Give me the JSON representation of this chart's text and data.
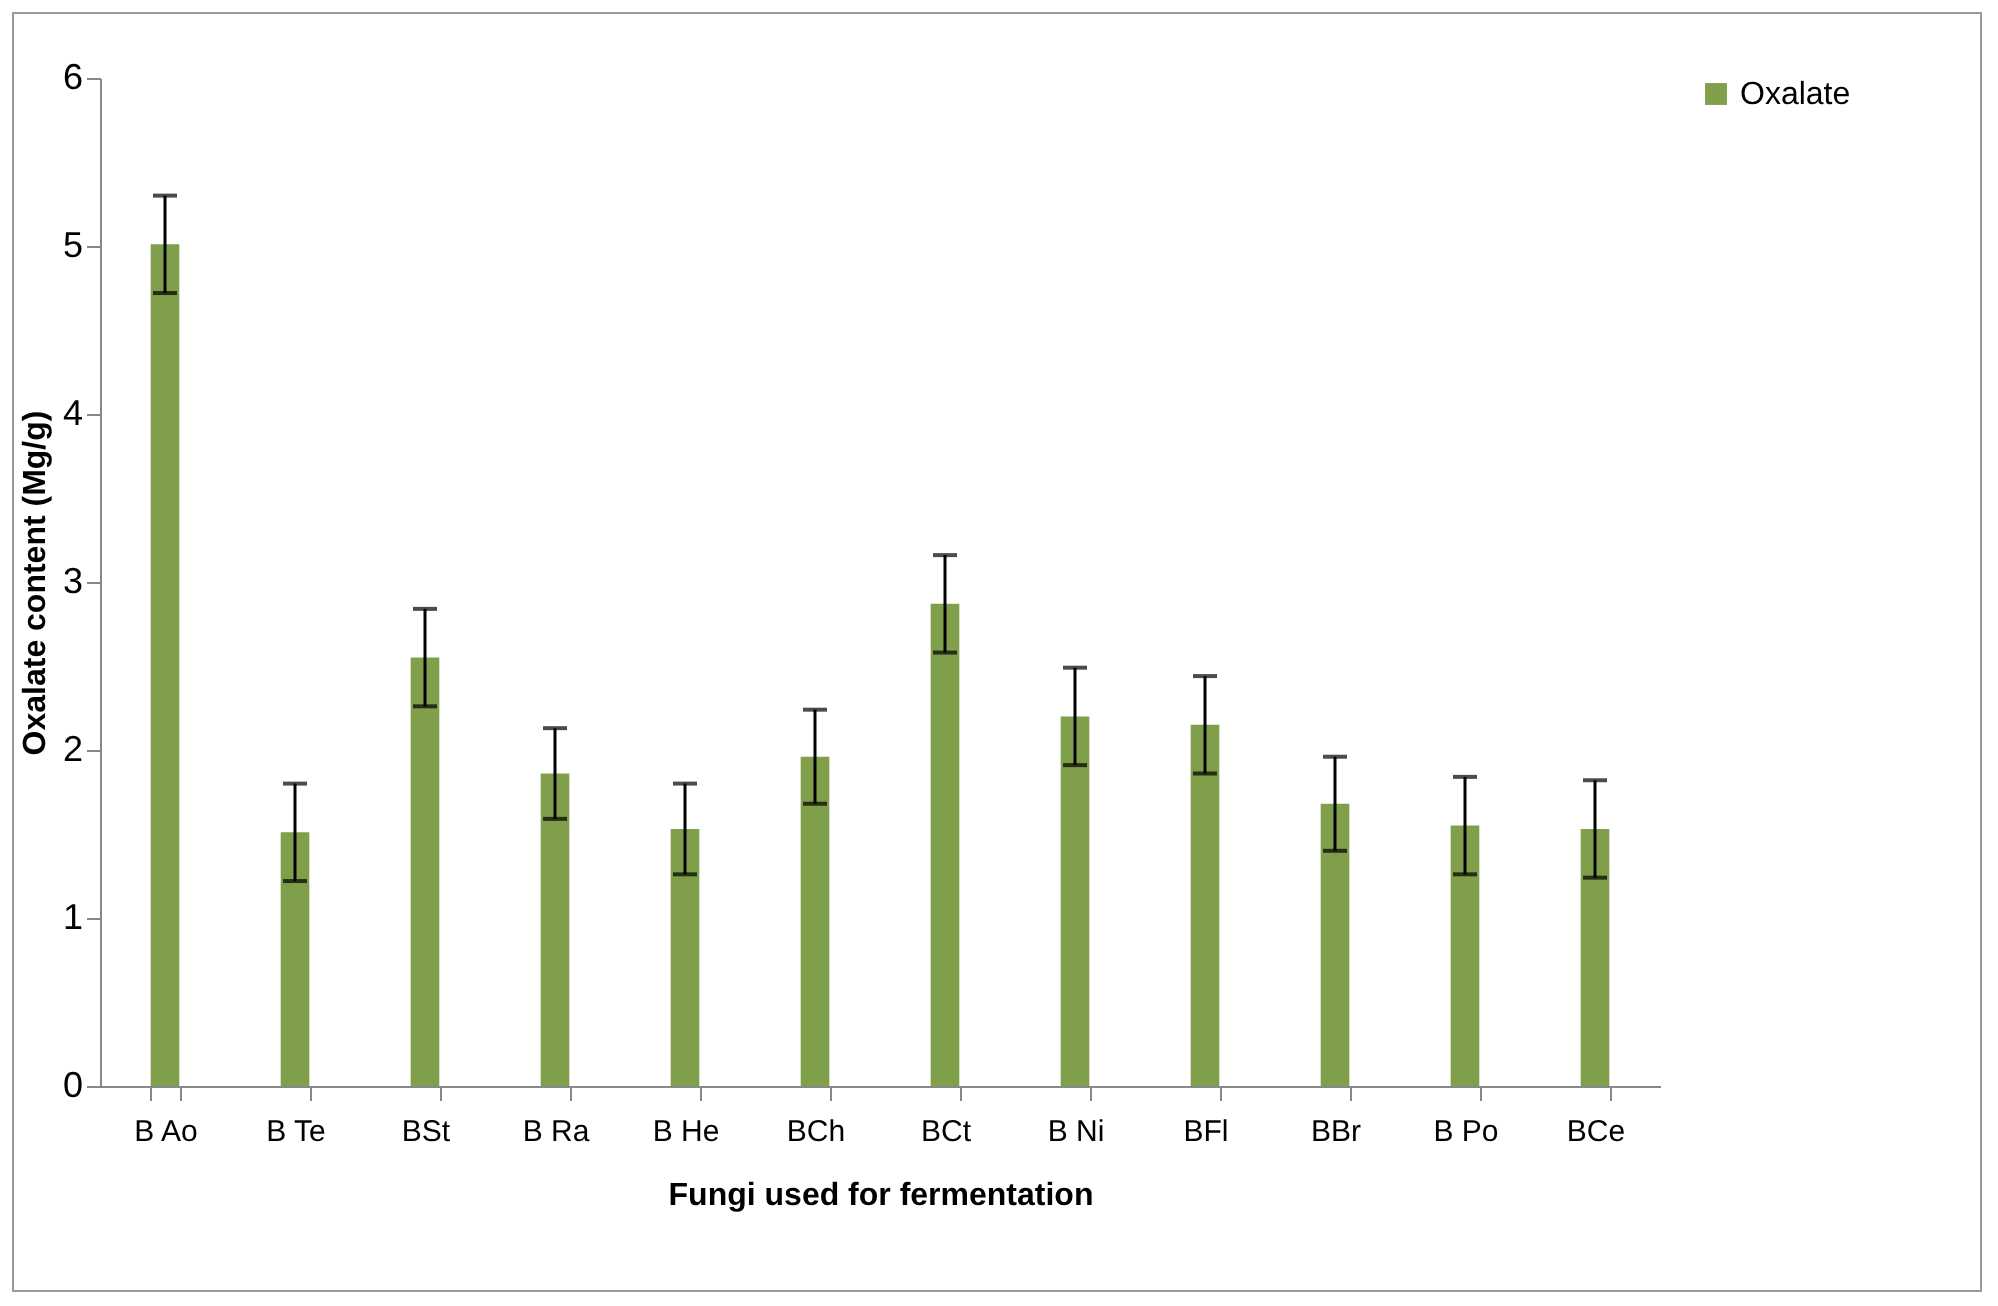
{
  "chart_data": {
    "type": "bar",
    "xlabel": "Fungi used for fermentation",
    "ylabel": "Oxalate content (Mg/g)",
    "categories": [
      "B Ao",
      "B Te",
      "BSt",
      "B Ra",
      "B He",
      "BCh",
      "BCt",
      "B Ni",
      "BFl",
      "BBr",
      "B Po",
      "BCe"
    ],
    "series": [
      {
        "name": "Oxalate",
        "color": "#7f9f4a",
        "values": [
          5.01,
          1.51,
          2.55,
          1.86,
          1.53,
          1.96,
          2.87,
          2.2,
          2.15,
          1.68,
          1.55,
          1.53
        ],
        "errors": [
          0.29,
          0.29,
          0.29,
          0.27,
          0.27,
          0.28,
          0.29,
          0.29,
          0.29,
          0.28,
          0.29,
          0.29
        ]
      }
    ],
    "ylim": [
      0,
      6
    ],
    "yticks": [
      0,
      1,
      2,
      3,
      4,
      5,
      6
    ],
    "grid": false,
    "legend": "right"
  }
}
